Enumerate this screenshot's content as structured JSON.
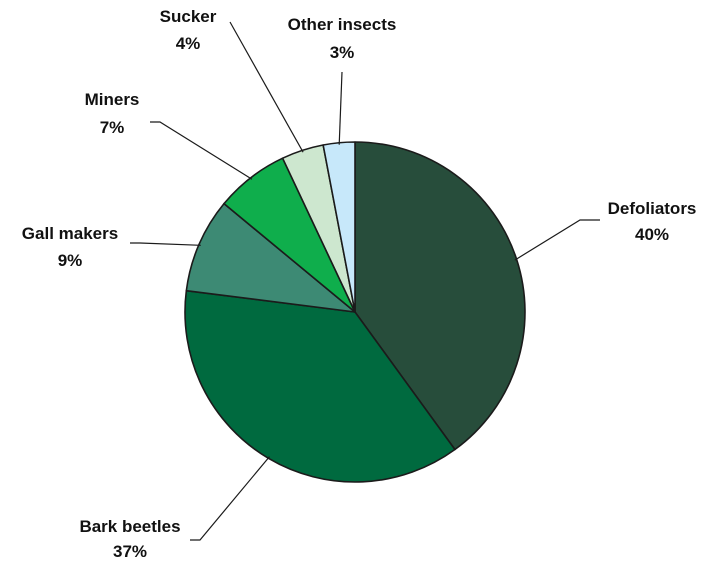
{
  "chart_data": {
    "type": "pie",
    "title": "",
    "slices": [
      {
        "name": "Defoliators",
        "value": 40,
        "label": "40%",
        "color": "#274d3b"
      },
      {
        "name": "Bark beetles",
        "value": 37,
        "label": "37%",
        "color": "#006a3f"
      },
      {
        "name": "Gall makers",
        "value": 9,
        "label": "9%",
        "color": "#3d8a74"
      },
      {
        "name": "Miners",
        "value": 7,
        "label": "7%",
        "color": "#0fae4c"
      },
      {
        "name": "Sucker",
        "value": 4,
        "label": "4%",
        "color": "#cde7cf"
      },
      {
        "name": "Other insects",
        "value": 3,
        "label": "3%",
        "color": "#c7e8fa"
      }
    ],
    "start_angle_deg": 90,
    "direction": "clockwise",
    "legend": "none",
    "labels": "outside with leader lines"
  }
}
